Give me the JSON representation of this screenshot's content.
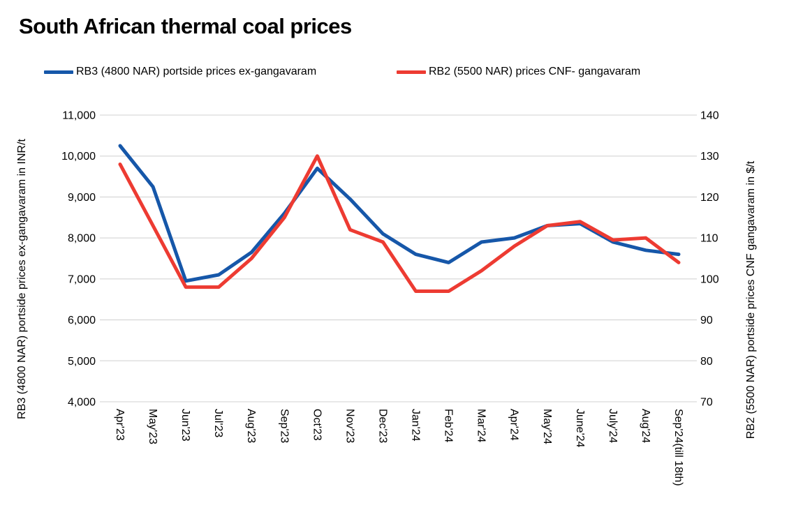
{
  "title": "South African thermal coal prices",
  "chart_data": {
    "type": "line",
    "title": "South African thermal coal prices",
    "grid": true,
    "legend_position": "top",
    "categories": [
      "Apr'23",
      "May'23",
      "Jun'23",
      "Jul'23",
      "Aug'23",
      "Sep'23",
      "Oct'23",
      "Nov'23",
      "Dec'23",
      "Jan'24",
      "Feb'24",
      "Mar'24",
      "Apr'24",
      "May'24",
      "June'24",
      "July'24",
      "Aug'24",
      "Sep'24(till 18th)"
    ],
    "series": [
      {
        "name": "RB3 (4800 NAR) portside prices ex-gangavaram",
        "axis": "left",
        "color": "#1657A9",
        "values": [
          10250,
          9250,
          6950,
          7100,
          7650,
          8600,
          9700,
          8950,
          8100,
          7600,
          7400,
          7900,
          8000,
          8300,
          8350,
          7900,
          7700,
          7600
        ]
      },
      {
        "name": "RB2 (5500 NAR) prices CNF- gangavaram",
        "axis": "right",
        "color": "#ED3B32",
        "values": [
          128,
          113,
          98,
          98,
          105,
          115,
          130,
          112,
          109,
          97,
          97,
          102,
          108,
          113,
          114,
          109.5,
          110,
          104
        ]
      }
    ],
    "left_axis": {
      "label": "RB3 (4800 NAR) portside prices ex-gangavaram in INR/t",
      "min": 4000,
      "max": 11000,
      "step": 1000,
      "tick_labels": [
        "11,000",
        "10,000",
        "9,000",
        "8,000",
        "7,000",
        "6,000",
        "5,000",
        "4,000"
      ]
    },
    "right_axis": {
      "label": "RB2 (5500 NAR) portside prices CNF gangavaram in $/t",
      "min": 70,
      "max": 140,
      "step": 10,
      "tick_labels": [
        "140",
        "130",
        "120",
        "110",
        "100",
        "90",
        "80",
        "70"
      ]
    },
    "gridline_color": "#D9D9D9"
  }
}
